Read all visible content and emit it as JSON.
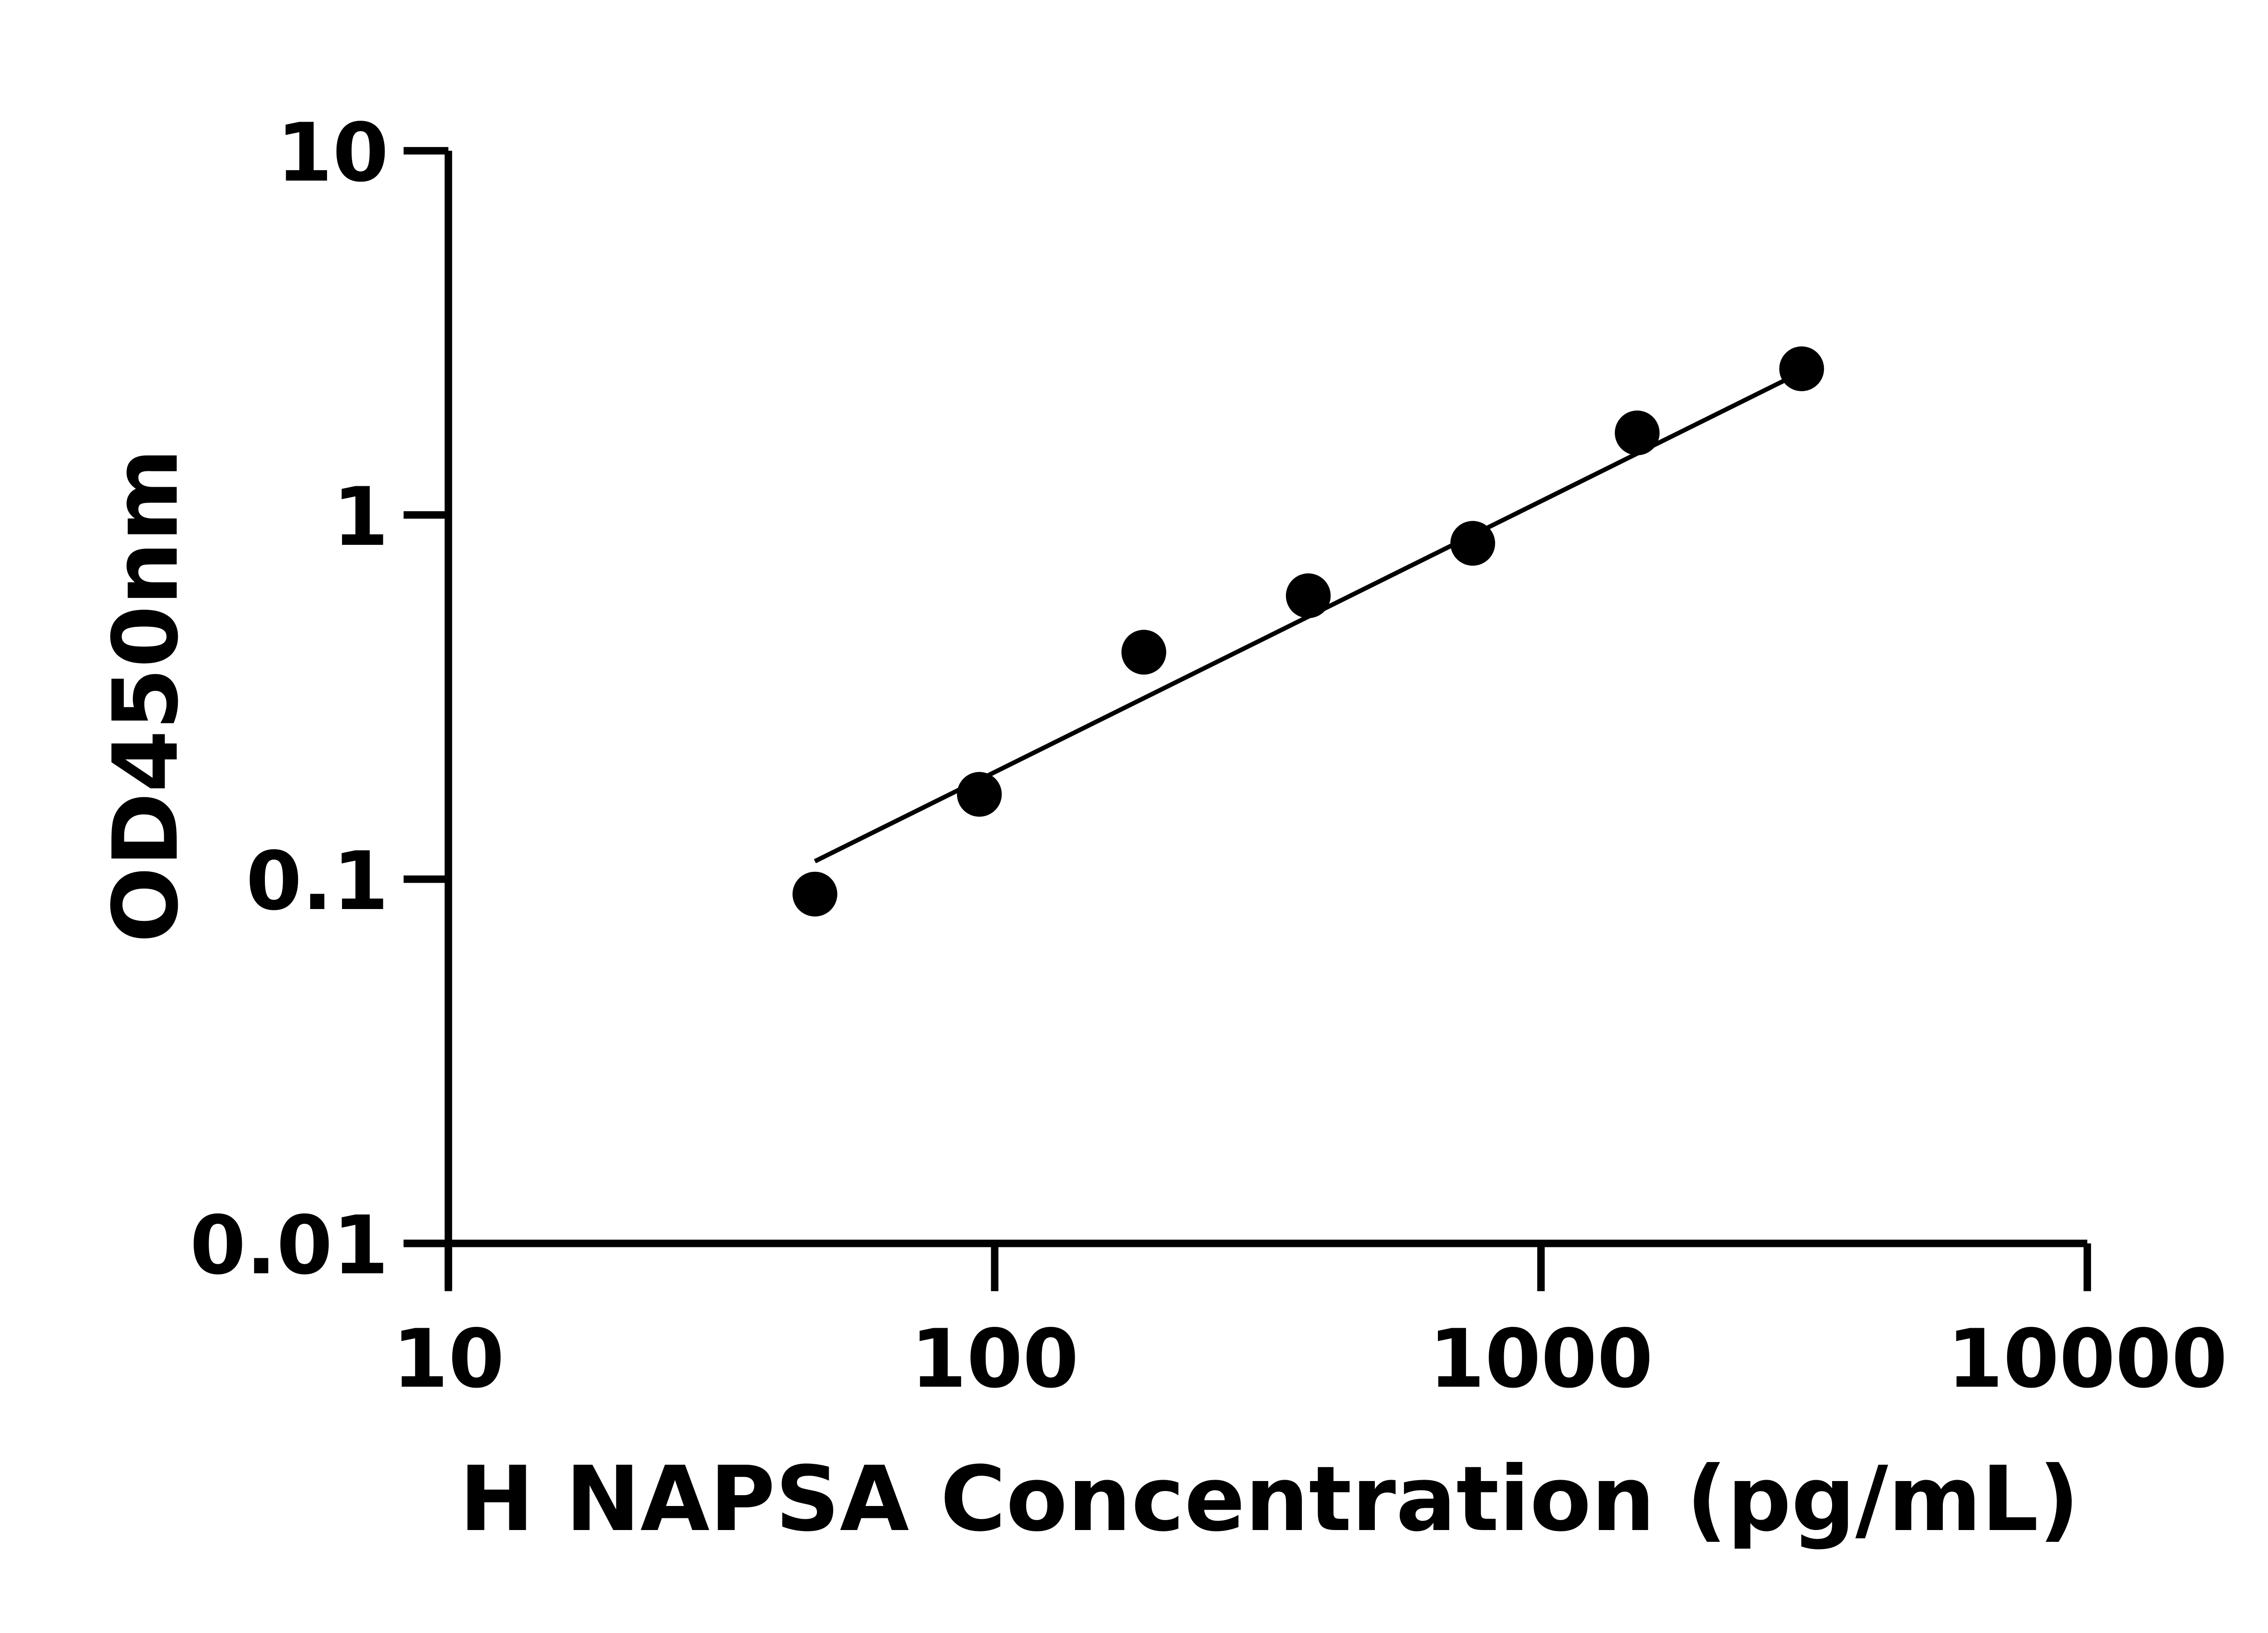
{
  "chart_data": {
    "type": "scatter",
    "title": "",
    "xlabel": "H NAPSA Concentration (pg/mL)",
    "ylabel": "OD450nm",
    "x_scale": "log",
    "y_scale": "log",
    "xlim": [
      10,
      10000
    ],
    "ylim": [
      0.01,
      10
    ],
    "x_ticks": [
      "10",
      "100",
      "1000",
      "10000"
    ],
    "y_ticks": [
      "0.01",
      "0.1",
      "1",
      "10"
    ],
    "grid": false,
    "legend": "none",
    "marker_color": "#000000",
    "points": {
      "x": [
        46.875,
        93.75,
        187.5,
        375,
        750,
        1500,
        3000
      ],
      "y": [
        0.091,
        0.171,
        0.42,
        0.6,
        0.836,
        1.68,
        2.52
      ]
    },
    "fit_line": {
      "x": [
        46.875,
        3000
      ],
      "y": [
        0.112,
        2.47
      ]
    }
  }
}
